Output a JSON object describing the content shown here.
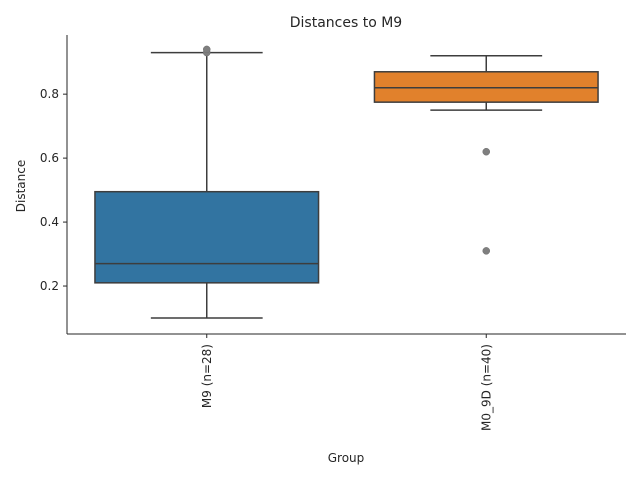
{
  "chart_data": {
    "type": "box",
    "title": "Distances to M9",
    "xlabel": "Group",
    "ylabel": "Distance",
    "ylim": [
      0.05,
      0.985
    ],
    "yticks": [
      0.2,
      0.4,
      0.6,
      0.8
    ],
    "grid": false,
    "categories": [
      "M9 (n=28)",
      "M0_9D (n=40)"
    ],
    "boxes": [
      {
        "category": "M9 (n=28)",
        "whisker_low": 0.1,
        "q1": 0.21,
        "median": 0.27,
        "q3": 0.495,
        "whisker_high": 0.93,
        "outliers": [
          0.93,
          0.94
        ],
        "color": "#3274a1"
      },
      {
        "category": "M0_9D (n=40)",
        "whisker_low": 0.75,
        "q1": 0.775,
        "median": 0.82,
        "q3": 0.87,
        "whisker_high": 0.92,
        "outliers": [
          0.31,
          0.62
        ],
        "color": "#e1812c"
      }
    ]
  }
}
